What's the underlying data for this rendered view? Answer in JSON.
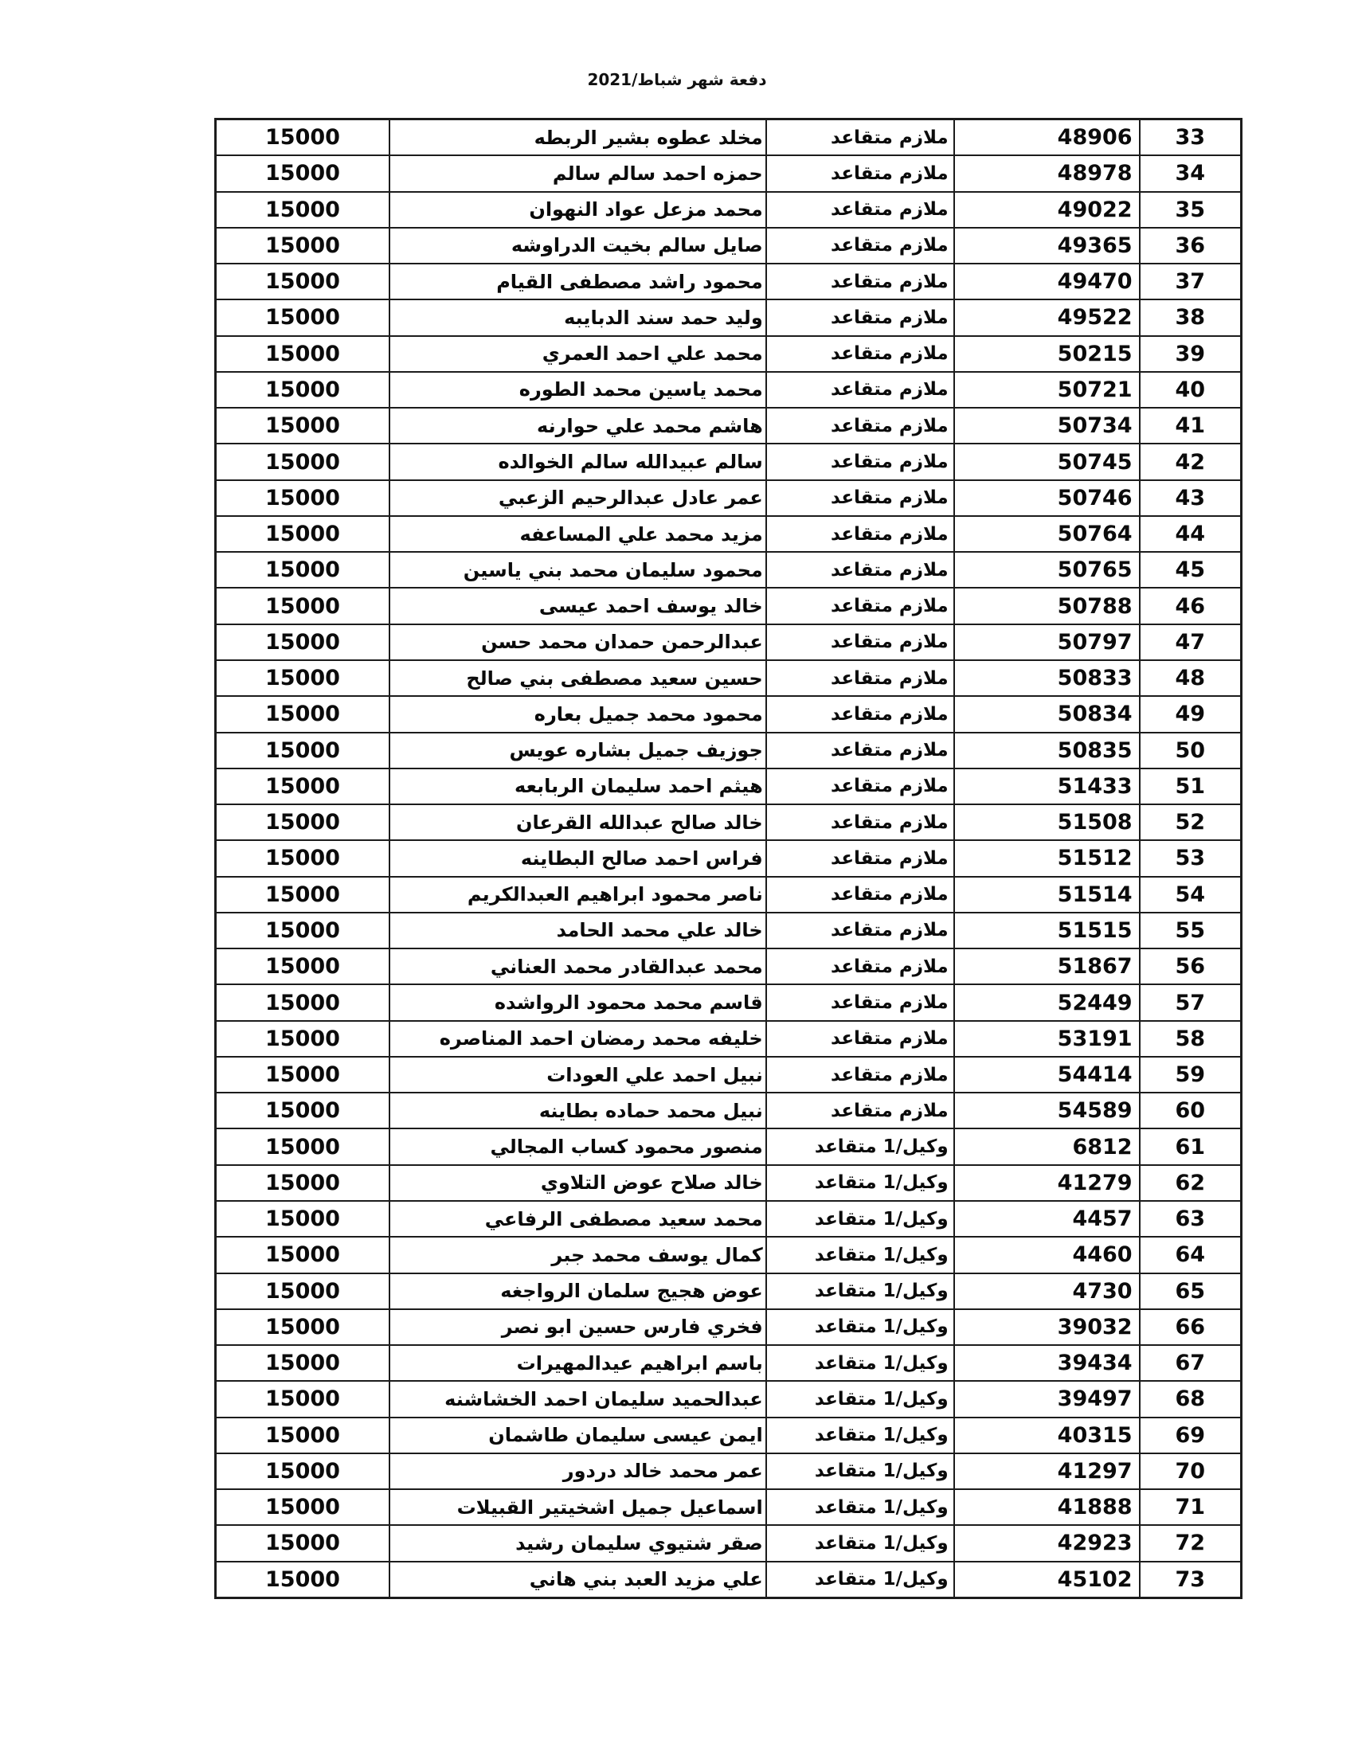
{
  "header": {
    "title": "دفعة شهر شباط/2021"
  },
  "table": {
    "column_keys": [
      "amount",
      "name",
      "rank",
      "id",
      "no"
    ],
    "rows": [
      {
        "no": "33",
        "id": "48906",
        "rank": "ملازم متقاعد",
        "name": "مخلد عطوه بشير الربطه",
        "amount": "15000"
      },
      {
        "no": "34",
        "id": "48978",
        "rank": "ملازم متقاعد",
        "name": "حمزه احمد سالم سالم",
        "amount": "15000"
      },
      {
        "no": "35",
        "id": "49022",
        "rank": "ملازم متقاعد",
        "name": "محمد مزعل عواد النهوان",
        "amount": "15000"
      },
      {
        "no": "36",
        "id": "49365",
        "rank": "ملازم متقاعد",
        "name": "صايل سالم بخيت الدراوشه",
        "amount": "15000"
      },
      {
        "no": "37",
        "id": "49470",
        "rank": "ملازم متقاعد",
        "name": "محمود راشد مصطفى القيام",
        "amount": "15000"
      },
      {
        "no": "38",
        "id": "49522",
        "rank": "ملازم متقاعد",
        "name": "وليد حمد سند الدبايبه",
        "amount": "15000"
      },
      {
        "no": "39",
        "id": "50215",
        "rank": "ملازم متقاعد",
        "name": "محمد علي احمد العمري",
        "amount": "15000"
      },
      {
        "no": "40",
        "id": "50721",
        "rank": "ملازم متقاعد",
        "name": "محمد ياسين محمد الطوره",
        "amount": "15000"
      },
      {
        "no": "41",
        "id": "50734",
        "rank": "ملازم متقاعد",
        "name": "هاشم محمد علي حوارنه",
        "amount": "15000"
      },
      {
        "no": "42",
        "id": "50745",
        "rank": "ملازم متقاعد",
        "name": "سالم عبيدالله سالم الخوالده",
        "amount": "15000"
      },
      {
        "no": "43",
        "id": "50746",
        "rank": "ملازم متقاعد",
        "name": "عمر عادل عبدالرحيم الزعبي",
        "amount": "15000"
      },
      {
        "no": "44",
        "id": "50764",
        "rank": "ملازم متقاعد",
        "name": "مزيد محمد علي المساعفه",
        "amount": "15000"
      },
      {
        "no": "45",
        "id": "50765",
        "rank": "ملازم متقاعد",
        "name": "محمود سليمان محمد بني ياسين",
        "amount": "15000"
      },
      {
        "no": "46",
        "id": "50788",
        "rank": "ملازم متقاعد",
        "name": "خالد يوسف احمد عيسى",
        "amount": "15000"
      },
      {
        "no": "47",
        "id": "50797",
        "rank": "ملازم متقاعد",
        "name": "عبدالرحمن حمدان محمد حسن",
        "amount": "15000"
      },
      {
        "no": "48",
        "id": "50833",
        "rank": "ملازم متقاعد",
        "name": "حسين سعيد مصطفى بني صالح",
        "amount": "15000"
      },
      {
        "no": "49",
        "id": "50834",
        "rank": "ملازم متقاعد",
        "name": "محمود محمد جميل بعاره",
        "amount": "15000"
      },
      {
        "no": "50",
        "id": "50835",
        "rank": "ملازم متقاعد",
        "name": "جوزيف جميل بشاره عويس",
        "amount": "15000"
      },
      {
        "no": "51",
        "id": "51433",
        "rank": "ملازم متقاعد",
        "name": "هيثم احمد سليمان الربابعه",
        "amount": "15000"
      },
      {
        "no": "52",
        "id": "51508",
        "rank": "ملازم متقاعد",
        "name": "خالد صالح عبدالله القرعان",
        "amount": "15000"
      },
      {
        "no": "53",
        "id": "51512",
        "rank": "ملازم متقاعد",
        "name": "فراس احمد صالح البطاينه",
        "amount": "15000"
      },
      {
        "no": "54",
        "id": "51514",
        "rank": "ملازم متقاعد",
        "name": "ناصر محمود ابراهيم العبدالكريم",
        "amount": "15000"
      },
      {
        "no": "55",
        "id": "51515",
        "rank": "ملازم متقاعد",
        "name": "خالد علي محمد الحامد",
        "amount": "15000"
      },
      {
        "no": "56",
        "id": "51867",
        "rank": "ملازم متقاعد",
        "name": "محمد عبدالقادر محمد العناني",
        "amount": "15000"
      },
      {
        "no": "57",
        "id": "52449",
        "rank": "ملازم متقاعد",
        "name": "قاسم محمد محمود الرواشده",
        "amount": "15000"
      },
      {
        "no": "58",
        "id": "53191",
        "rank": "ملازم متقاعد",
        "name": "خليفه محمد رمضان احمد المناصره",
        "amount": "15000"
      },
      {
        "no": "59",
        "id": "54414",
        "rank": "ملازم متقاعد",
        "name": "نبيل احمد علي العودات",
        "amount": "15000"
      },
      {
        "no": "60",
        "id": "54589",
        "rank": "ملازم متقاعد",
        "name": "نبيل محمد حماده بطاينه",
        "amount": "15000"
      },
      {
        "no": "61",
        "id": "6812",
        "rank": "وكيل/1 متقاعد",
        "name": "منصور محمود كساب المجالي",
        "amount": "15000"
      },
      {
        "no": "62",
        "id": "41279",
        "rank": "وكيل/1 متقاعد",
        "name": "خالد صلاح عوض التلاوي",
        "amount": "15000"
      },
      {
        "no": "63",
        "id": "4457",
        "rank": "وكيل/1 متقاعد",
        "name": "محمد سعيد مصطفى الرفاعي",
        "amount": "15000"
      },
      {
        "no": "64",
        "id": "4460",
        "rank": "وكيل/1 متقاعد",
        "name": "كمال يوسف محمد جبر",
        "amount": "15000"
      },
      {
        "no": "65",
        "id": "4730",
        "rank": "وكيل/1 متقاعد",
        "name": "عوض هجيج سلمان الرواجغه",
        "amount": "15000"
      },
      {
        "no": "66",
        "id": "39032",
        "rank": "وكيل/1 متقاعد",
        "name": "فخري فارس حسين ابو نصر",
        "amount": "15000"
      },
      {
        "no": "67",
        "id": "39434",
        "rank": "وكيل/1 متقاعد",
        "name": "باسم ابراهيم عيدالمهيرات",
        "amount": "15000"
      },
      {
        "no": "68",
        "id": "39497",
        "rank": "وكيل/1 متقاعد",
        "name": "عبدالحميد سليمان احمد الخشاشنه",
        "amount": "15000"
      },
      {
        "no": "69",
        "id": "40315",
        "rank": "وكيل/1 متقاعد",
        "name": "ايمن عيسى سليمان طاشمان",
        "amount": "15000"
      },
      {
        "no": "70",
        "id": "41297",
        "rank": "وكيل/1 متقاعد",
        "name": "عمر محمد خالد دردور",
        "amount": "15000"
      },
      {
        "no": "71",
        "id": "41888",
        "rank": "وكيل/1 متقاعد",
        "name": "اسماعيل جميل اشخيتير القبيلات",
        "amount": "15000"
      },
      {
        "no": "72",
        "id": "42923",
        "rank": "وكيل/1 متقاعد",
        "name": "صقر شتيوي سليمان رشيد",
        "amount": "15000"
      },
      {
        "no": "73",
        "id": "45102",
        "rank": "وكيل/1 متقاعد",
        "name": "علي مزيد العبد بني هاني",
        "amount": "15000"
      }
    ]
  }
}
